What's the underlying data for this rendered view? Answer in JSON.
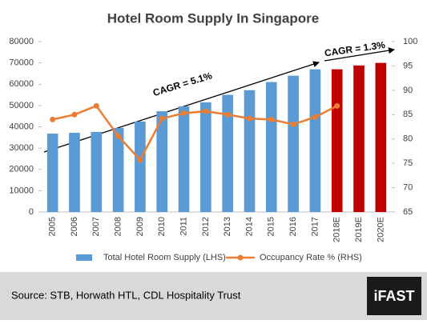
{
  "chart_data": {
    "type": "bar",
    "title": "Hotel Room Supply In Singapore",
    "categories": [
      "2005",
      "2006",
      "2007",
      "2008",
      "2009",
      "2010",
      "2011",
      "2012",
      "2013",
      "2014",
      "2015",
      "2016",
      "2017",
      "2018E",
      "2019E",
      "2020E"
    ],
    "series": [
      {
        "name": "Total Hotel Room Supply (LHS)",
        "color": "#5b9bd5",
        "colors": [
          "#5b9bd5",
          "#5b9bd5",
          "#5b9bd5",
          "#5b9bd5",
          "#5b9bd5",
          "#5b9bd5",
          "#5b9bd5",
          "#5b9bd5",
          "#5b9bd5",
          "#5b9bd5",
          "#5b9bd5",
          "#5b9bd5",
          "#5b9bd5",
          "#c00000",
          "#c00000",
          "#c00000"
        ],
        "values": [
          36800,
          37200,
          37600,
          39500,
          42500,
          47300,
          49600,
          51500,
          55000,
          57200,
          61000,
          64000,
          67000,
          67000,
          68800,
          70000
        ]
      },
      {
        "name": "Occupancy Rate % (RHS)",
        "color": "#ed7d31",
        "type": "line",
        "axis": "y2",
        "values": [
          84,
          85,
          86.8,
          80.6,
          75.7,
          84.2,
          85.3,
          85.7,
          85,
          84.2,
          84,
          83,
          84.5,
          86.8,
          null,
          null
        ]
      }
    ],
    "ylim": [
      0,
      80000
    ],
    "yticks": [
      0,
      10000,
      20000,
      30000,
      40000,
      50000,
      60000,
      70000,
      80000
    ],
    "y2lim": [
      65,
      100
    ],
    "y2ticks": [
      65,
      70,
      75,
      80,
      85,
      90,
      95,
      100
    ],
    "annotations": [
      "CAGR = 5.1%",
      "CAGR = 1.3%"
    ],
    "source": "Source: STB, Horwath HTL, CDL Hospitality Trust",
    "logo": "iFAST"
  }
}
